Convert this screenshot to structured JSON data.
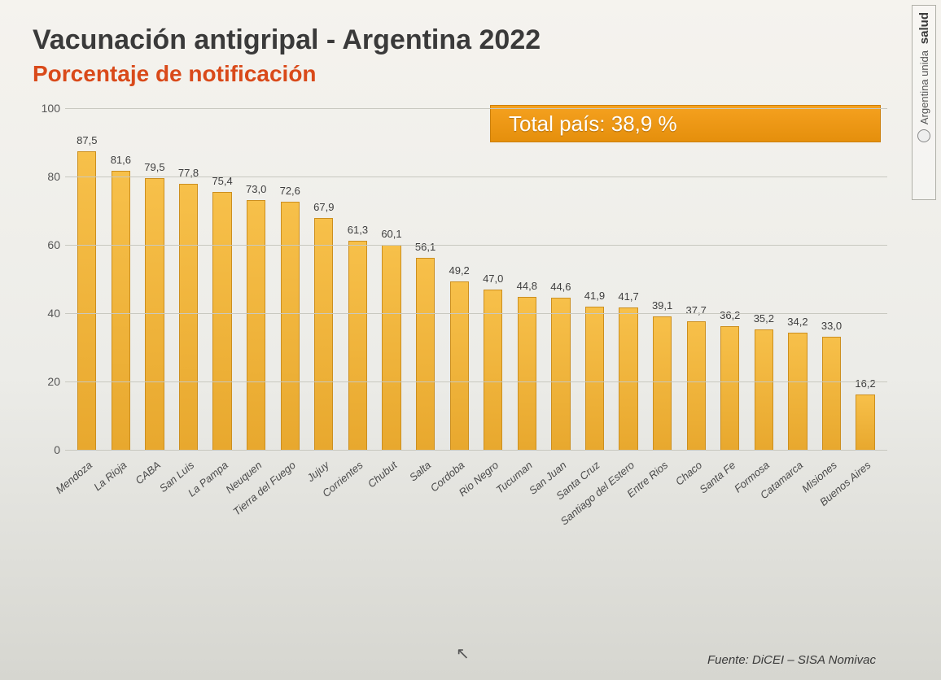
{
  "title": "Vacunación antigripal - Argentina 2022",
  "subtitle": "Porcentaje de notificación",
  "total_banner": "Total país: 38,9 %",
  "source": "Fuente: DiCEI – SISA Nomivac",
  "sidebar": {
    "line1": "salud",
    "line2": "Argentina unida"
  },
  "chart": {
    "type": "bar",
    "ylim": [
      0,
      100
    ],
    "yticks": [
      0,
      20,
      40,
      60,
      80,
      100
    ],
    "bar_color_top": "#f7c04a",
    "bar_color_bottom": "#e8a82e",
    "bar_border": "#cc8f1f",
    "grid_color": "#c8c8c0",
    "background": "#f0efe9",
    "label_fontsize": 13,
    "tick_fontsize": 14,
    "title_color": "#3a3a3a",
    "subtitle_color": "#d94a1a",
    "banner_color": "#e58f0c",
    "banner_text_color": "#ffffff",
    "categories": [
      "Mendoza",
      "La Rioja",
      "CABA",
      "San Luis",
      "La Pampa",
      "Neuquen",
      "Tierra del Fuego",
      "Jujuy",
      "Corrientes",
      "Chubut",
      "Salta",
      "Cordoba",
      "Rio Negro",
      "Tucuman",
      "San Juan",
      "Santa Cruz",
      "Santiago del Estero",
      "Entre Rios",
      "Chaco",
      "Santa Fe",
      "Formosa",
      "Catamarca",
      "Misiones",
      "Buenos Aires"
    ],
    "values": [
      87.5,
      81.6,
      79.5,
      77.8,
      75.4,
      73.0,
      72.6,
      67.9,
      61.3,
      60.1,
      56.1,
      49.2,
      47.0,
      44.8,
      44.6,
      41.9,
      41.7,
      39.1,
      37.7,
      36.2,
      35.2,
      34.2,
      33.0,
      16.2
    ],
    "value_labels": [
      "87,5",
      "81,6",
      "79,5",
      "77,8",
      "75,4",
      "73,0",
      "72,6",
      "67,9",
      "61,3",
      "60,1",
      "56,1",
      "49,2",
      "47,0",
      "44,8",
      "44,6",
      "41,9",
      "41,7",
      "39,1",
      "37,7",
      "36,2",
      "35,2",
      "34,2",
      "33,0",
      "16,2"
    ]
  }
}
